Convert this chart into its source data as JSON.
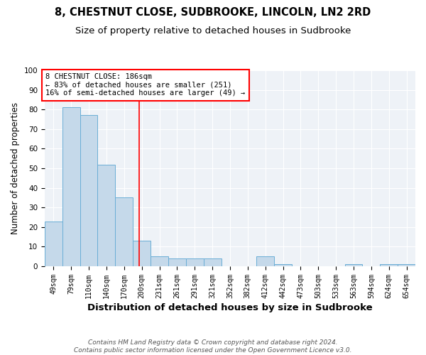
{
  "title": "8, CHESTNUT CLOSE, SUDBROOKE, LINCOLN, LN2 2RD",
  "subtitle": "Size of property relative to detached houses in Sudbrooke",
  "xlabel": "Distribution of detached houses by size in Sudbrooke",
  "ylabel": "Number of detached properties",
  "categories": [
    "49sqm",
    "79sqm",
    "110sqm",
    "140sqm",
    "170sqm",
    "200sqm",
    "231sqm",
    "261sqm",
    "291sqm",
    "321sqm",
    "352sqm",
    "382sqm",
    "412sqm",
    "442sqm",
    "473sqm",
    "503sqm",
    "533sqm",
    "563sqm",
    "594sqm",
    "624sqm",
    "654sqm"
  ],
  "values": [
    23,
    81,
    77,
    52,
    35,
    13,
    5,
    4,
    4,
    4,
    0,
    0,
    5,
    1,
    0,
    0,
    0,
    1,
    0,
    1,
    1
  ],
  "bar_color": "#c5d9ea",
  "bar_edge_color": "#6aaed6",
  "vline_x_index": 4.87,
  "vline_color": "red",
  "vline_linewidth": 1.2,
  "annotation_text": "8 CHESTNUT CLOSE: 186sqm\n← 83% of detached houses are smaller (251)\n16% of semi-detached houses are larger (49) →",
  "annotation_box_color": "white",
  "annotation_box_edgecolor": "red",
  "ylim": [
    0,
    100
  ],
  "yticks": [
    0,
    10,
    20,
    30,
    40,
    50,
    60,
    70,
    80,
    90,
    100
  ],
  "footnote": "Contains HM Land Registry data © Crown copyright and database right 2024.\nContains public sector information licensed under the Open Government Licence v3.0.",
  "bg_color": "#eef2f7",
  "title_fontsize": 10.5,
  "subtitle_fontsize": 9.5,
  "xlabel_fontsize": 9.5,
  "ylabel_fontsize": 8.5,
  "tick_fontsize": 7,
  "annot_fontsize": 7.5,
  "footnote_fontsize": 6.5
}
